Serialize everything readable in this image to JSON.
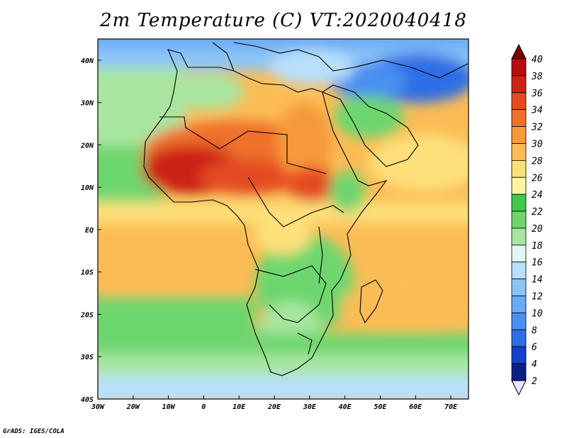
{
  "title": "2m Temperature (C) VT:2020040418",
  "credit": "GrADS: IGES/COLA",
  "map": {
    "x_ticks": [
      "30W",
      "20W",
      "10W",
      "0",
      "10E",
      "20E",
      "30E",
      "40E",
      "50E",
      "60E",
      "70E"
    ],
    "y_ticks": [
      "40N",
      "30N",
      "20N",
      "10N",
      "EQ",
      "10S",
      "20S",
      "30S",
      "40S"
    ],
    "lon_range": [
      -30,
      75
    ],
    "lat_range": [
      -40,
      45
    ]
  },
  "colorbar": {
    "levels": [
      "2",
      "4",
      "6",
      "8",
      "10",
      "12",
      "14",
      "16",
      "18",
      "20",
      "22",
      "24",
      "26",
      "28",
      "30",
      "32",
      "34",
      "36",
      "38",
      "40"
    ],
    "colors": [
      "#eae6ff",
      "#0c1f86",
      "#1441c8",
      "#2d6ee6",
      "#4a90f0",
      "#6aaaf5",
      "#8cc4f8",
      "#b8e0fb",
      "#e2f6f4",
      "#a8e6a0",
      "#6ed66e",
      "#3ec84a",
      "#fdf5a4",
      "#fde07a",
      "#fcbc55",
      "#f79a3a",
      "#f0702a",
      "#e44b20",
      "#cc2414",
      "#b40e0e",
      "#7a0000"
    ]
  }
}
